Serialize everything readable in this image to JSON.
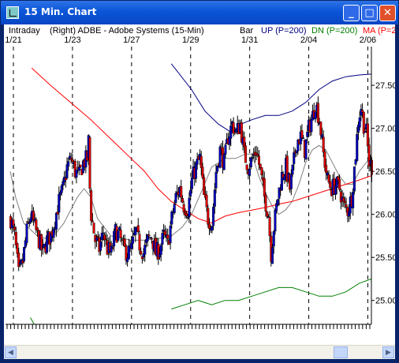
{
  "window": {
    "title": "15 Min. Chart"
  },
  "header": {
    "left": "Intraday",
    "symbol": "(Right) ADBE - Adobe Systems (15-Min)",
    "bar": "Bar",
    "up": "UP (P=200)",
    "dn": "DN (P=200)",
    "ma": "MA (P=2"
  },
  "colors": {
    "up_band": "#000080",
    "dn_band": "#008000",
    "ma": "#ff0000",
    "mid": "#808080",
    "up_candle": "#0000c0",
    "down_candle": "#e00000",
    "header_up": "#000080",
    "header_dn": "#008000",
    "header_ma": "#ff0000"
  },
  "chart_data": {
    "type": "candlestick",
    "y_ticks": [
      "27.50",
      "27.00",
      "26.50",
      "26.00",
      "25.50",
      "25.00"
    ],
    "ylim": [
      24.75,
      27.95
    ],
    "x_labels": [
      {
        "day": "1/21",
        "idx": 0
      },
      {
        "day": "1/23",
        "idx": 44
      },
      {
        "day": "1/27",
        "idx": 88
      },
      {
        "day": "1/29",
        "idx": 132
      },
      {
        "day": "1/31",
        "idx": 176
      },
      {
        "day": "2/04",
        "idx": 220
      },
      {
        "day": "2/06",
        "idx": 264
      }
    ],
    "bar_count": 270,
    "price_path": [
      [
        0,
        25.95
      ],
      [
        3,
        25.75
      ],
      [
        6,
        25.3
      ],
      [
        9,
        25.45
      ],
      [
        12,
        25.8
      ],
      [
        15,
        26.0
      ],
      [
        18,
        25.85
      ],
      [
        21,
        25.7
      ],
      [
        24,
        25.55
      ],
      [
        27,
        25.7
      ],
      [
        30,
        25.75
      ],
      [
        33,
        25.95
      ],
      [
        36,
        26.15
      ],
      [
        39,
        26.3
      ],
      [
        42,
        26.55
      ],
      [
        45,
        26.65
      ],
      [
        48,
        26.5
      ],
      [
        51,
        26.45
      ],
      [
        54,
        26.6
      ],
      [
        57,
        26.65
      ],
      [
        58,
        26.85
      ],
      [
        59,
        26.3
      ],
      [
        60,
        26.0
      ],
      [
        63,
        25.7
      ],
      [
        66,
        25.6
      ],
      [
        69,
        25.8
      ],
      [
        72,
        25.6
      ],
      [
        75,
        25.55
      ],
      [
        78,
        25.8
      ],
      [
        81,
        25.75
      ],
      [
        84,
        25.6
      ],
      [
        87,
        25.55
      ],
      [
        90,
        25.6
      ],
      [
        93,
        25.8
      ],
      [
        96,
        25.65
      ],
      [
        99,
        25.55
      ],
      [
        102,
        25.7
      ],
      [
        105,
        25.75
      ],
      [
        108,
        25.55
      ],
      [
        111,
        25.6
      ],
      [
        114,
        25.75
      ],
      [
        117,
        25.65
      ],
      [
        120,
        25.95
      ],
      [
        123,
        26.2
      ],
      [
        126,
        26.3
      ],
      [
        129,
        26.1
      ],
      [
        132,
        26.05
      ],
      [
        135,
        26.4
      ],
      [
        138,
        26.55
      ],
      [
        141,
        26.65
      ],
      [
        144,
        26.2
      ],
      [
        147,
        25.95
      ],
      [
        150,
        25.9
      ],
      [
        153,
        26.5
      ],
      [
        156,
        26.75
      ],
      [
        159,
        26.6
      ],
      [
        162,
        26.9
      ],
      [
        165,
        27.05
      ],
      [
        168,
        26.95
      ],
      [
        171,
        27.05
      ],
      [
        174,
        26.7
      ],
      [
        177,
        26.55
      ],
      [
        180,
        26.65
      ],
      [
        183,
        26.75
      ],
      [
        186,
        26.5
      ],
      [
        189,
        26.2
      ],
      [
        192,
        26.0
      ],
      [
        194,
        25.55
      ],
      [
        196,
        25.85
      ],
      [
        199,
        26.2
      ],
      [
        202,
        26.45
      ],
      [
        205,
        26.55
      ],
      [
        208,
        26.3
      ],
      [
        210,
        26.5
      ],
      [
        213,
        26.85
      ],
      [
        216,
        26.9
      ],
      [
        219,
        26.75
      ],
      [
        222,
        27.0
      ],
      [
        225,
        27.15
      ],
      [
        227,
        27.3
      ],
      [
        230,
        27.1
      ],
      [
        233,
        26.7
      ],
      [
        236,
        26.4
      ],
      [
        239,
        26.3
      ],
      [
        242,
        26.35
      ],
      [
        245,
        26.3
      ],
      [
        248,
        26.1
      ],
      [
        251,
        26.05
      ],
      [
        254,
        26.2
      ],
      [
        257,
        26.7
      ],
      [
        259,
        27.1
      ],
      [
        261,
        27.25
      ],
      [
        263,
        27.05
      ],
      [
        265,
        26.95
      ],
      [
        267,
        26.6
      ],
      [
        269,
        26.55
      ]
    ],
    "up_band": [
      [
        120,
        27.75
      ],
      [
        135,
        27.45
      ],
      [
        145,
        27.2
      ],
      [
        155,
        27.05
      ],
      [
        165,
        26.95
      ],
      [
        172,
        27.05
      ],
      [
        180,
        27.1
      ],
      [
        190,
        27.15
      ],
      [
        200,
        27.15
      ],
      [
        210,
        27.2
      ],
      [
        220,
        27.3
      ],
      [
        230,
        27.45
      ],
      [
        240,
        27.55
      ],
      [
        250,
        27.6
      ],
      [
        260,
        27.62
      ],
      [
        269,
        27.63
      ]
    ],
    "dn_band": [
      [
        15,
        24.8
      ],
      [
        18,
        24.72
      ],
      [
        120,
        24.9
      ],
      [
        130,
        24.95
      ],
      [
        140,
        25.0
      ],
      [
        150,
        24.95
      ],
      [
        160,
        25.0
      ],
      [
        170,
        25.0
      ],
      [
        180,
        25.05
      ],
      [
        190,
        25.1
      ],
      [
        200,
        25.15
      ],
      [
        210,
        25.15
      ],
      [
        220,
        25.1
      ],
      [
        230,
        25.05
      ],
      [
        240,
        25.05
      ],
      [
        250,
        25.1
      ],
      [
        260,
        25.2
      ],
      [
        269,
        25.25
      ]
    ],
    "ma": [
      [
        16,
        27.7
      ],
      [
        30,
        27.5
      ],
      [
        45,
        27.3
      ],
      [
        60,
        27.1
      ],
      [
        70,
        26.95
      ],
      [
        80,
        26.8
      ],
      [
        90,
        26.65
      ],
      [
        100,
        26.5
      ],
      [
        110,
        26.3
      ],
      [
        120,
        26.15
      ],
      [
        130,
        26.05
      ],
      [
        140,
        25.95
      ],
      [
        150,
        25.9
      ],
      [
        160,
        25.98
      ],
      [
        170,
        26.02
      ],
      [
        180,
        26.05
      ],
      [
        190,
        26.08
      ],
      [
        200,
        26.12
      ],
      [
        210,
        26.15
      ],
      [
        220,
        26.2
      ],
      [
        230,
        26.25
      ],
      [
        240,
        26.3
      ],
      [
        250,
        26.35
      ],
      [
        260,
        26.4
      ],
      [
        269,
        26.45
      ]
    ],
    "mid_band": [
      [
        0,
        26.5
      ],
      [
        4,
        26.2
      ],
      [
        10,
        25.9
      ],
      [
        20,
        25.75
      ],
      [
        30,
        25.7
      ],
      [
        40,
        25.9
      ],
      [
        50,
        26.2
      ],
      [
        55,
        26.3
      ],
      [
        60,
        26.2
      ],
      [
        65,
        25.95
      ],
      [
        75,
        25.75
      ],
      [
        90,
        25.7
      ],
      [
        100,
        25.7
      ],
      [
        110,
        25.72
      ],
      [
        120,
        25.75
      ],
      [
        128,
        25.85
      ],
      [
        135,
        26.0
      ],
      [
        142,
        26.25
      ],
      [
        150,
        26.55
      ],
      [
        155,
        26.6
      ],
      [
        160,
        26.65
      ],
      [
        168,
        26.65
      ],
      [
        175,
        26.7
      ],
      [
        180,
        26.7
      ],
      [
        185,
        26.45
      ],
      [
        190,
        26.25
      ],
      [
        195,
        26.1
      ],
      [
        200,
        26.0
      ],
      [
        205,
        26.05
      ],
      [
        210,
        26.15
      ],
      [
        215,
        26.35
      ],
      [
        220,
        26.6
      ],
      [
        225,
        26.75
      ],
      [
        230,
        26.8
      ],
      [
        235,
        26.75
      ],
      [
        240,
        26.6
      ],
      [
        245,
        26.45
      ],
      [
        250,
        26.35
      ],
      [
        255,
        26.35
      ],
      [
        260,
        26.5
      ],
      [
        265,
        26.6
      ],
      [
        269,
        26.65
      ]
    ]
  }
}
